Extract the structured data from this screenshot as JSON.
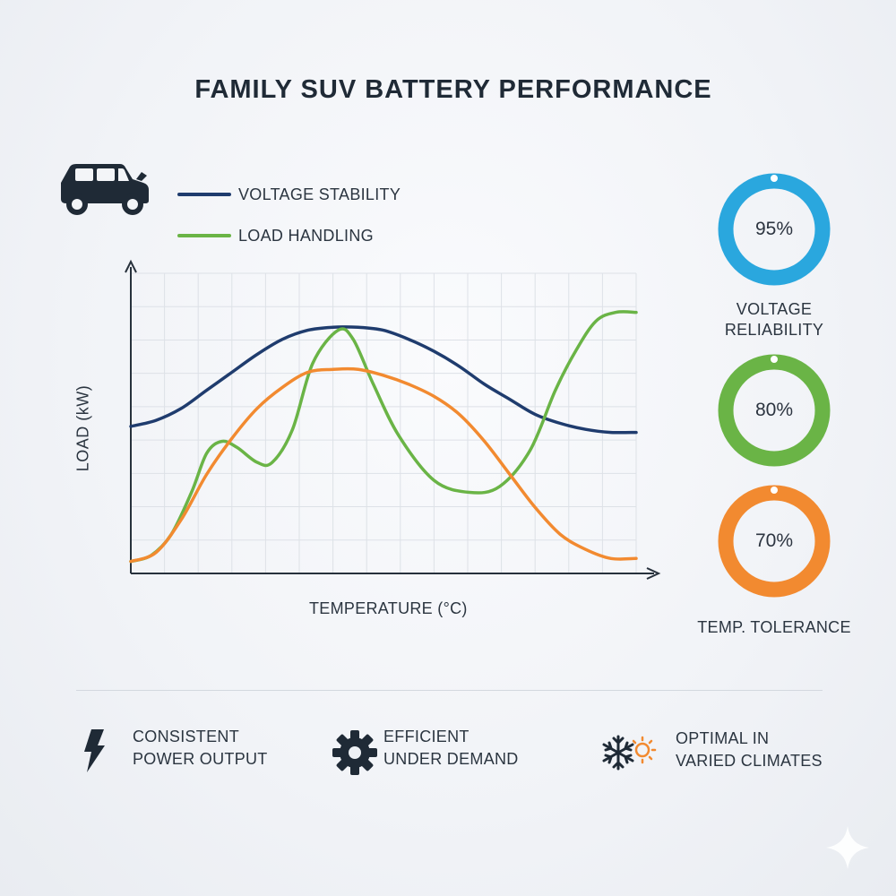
{
  "title": "FAMILY SUV BATTERY PERFORMANCE",
  "icons": {
    "car": "car-icon",
    "lightning": "lightning-icon",
    "gear": "gear-icon",
    "climate": "snowflake-sun-icon",
    "sparkle": "sparkle-icon"
  },
  "colors": {
    "voltage": "#1f3c6e",
    "load": "#6ab446",
    "temp": "#f28a30",
    "blue_gauge": "#2aa7de",
    "green_gauge": "#6ab446",
    "orange_gauge": "#f28a30"
  },
  "chart_data": {
    "type": "line",
    "title": "FAMILY SUV BATTERY PERFORMANCE",
    "xlabel": "TEMPERATURE (°C)",
    "ylabel": "LOAD (kW)",
    "grid": true,
    "legend_position": "top-left",
    "xlim": [
      0,
      100
    ],
    "ylim": [
      0,
      100
    ],
    "series": [
      {
        "name": "VOLTAGE STABILITY",
        "color": "#1f3c6e",
        "points": [
          [
            0,
            49
          ],
          [
            5,
            51
          ],
          [
            10,
            55
          ],
          [
            15,
            61
          ],
          [
            20,
            67
          ],
          [
            25,
            73
          ],
          [
            30,
            78
          ],
          [
            35,
            81
          ],
          [
            40,
            82
          ],
          [
            45,
            82
          ],
          [
            50,
            81
          ],
          [
            55,
            78
          ],
          [
            60,
            74
          ],
          [
            65,
            69
          ],
          [
            70,
            63
          ],
          [
            75,
            58
          ],
          [
            80,
            53
          ],
          [
            85,
            50
          ],
          [
            90,
            48
          ],
          [
            95,
            47
          ],
          [
            100,
            47
          ]
        ]
      },
      {
        "name": "LOAD HANDLING",
        "color": "#6ab446",
        "points": [
          [
            0,
            4
          ],
          [
            4,
            6
          ],
          [
            8,
            13
          ],
          [
            12,
            27
          ],
          [
            15,
            40
          ],
          [
            18,
            44
          ],
          [
            21,
            42
          ],
          [
            25,
            37
          ],
          [
            28,
            37
          ],
          [
            32,
            48
          ],
          [
            36,
            70
          ],
          [
            41,
            81
          ],
          [
            44,
            78
          ],
          [
            48,
            63
          ],
          [
            53,
            46
          ],
          [
            60,
            31
          ],
          [
            67,
            27
          ],
          [
            73,
            29
          ],
          [
            79,
            41
          ],
          [
            84,
            61
          ],
          [
            88,
            74
          ],
          [
            92,
            84
          ],
          [
            96,
            87
          ],
          [
            100,
            87
          ]
        ]
      },
      {
        "color": "#f28a30",
        "points": [
          [
            0,
            4
          ],
          [
            5,
            7
          ],
          [
            10,
            18
          ],
          [
            15,
            33
          ],
          [
            20,
            45
          ],
          [
            25,
            55
          ],
          [
            30,
            62
          ],
          [
            35,
            67
          ],
          [
            40,
            68
          ],
          [
            45,
            68
          ],
          [
            50,
            66
          ],
          [
            55,
            63
          ],
          [
            60,
            59
          ],
          [
            65,
            53
          ],
          [
            70,
            44
          ],
          [
            75,
            33
          ],
          [
            80,
            22
          ],
          [
            85,
            13
          ],
          [
            90,
            8
          ],
          [
            95,
            5
          ],
          [
            100,
            5
          ]
        ]
      }
    ]
  },
  "gauges": [
    {
      "value_text": "95%",
      "value": 95,
      "label": "VOLTAGE\nRELIABILITY",
      "color": "#2aa7de"
    },
    {
      "value_text": "80%",
      "value": 80,
      "label": "",
      "color": "#6ab446"
    },
    {
      "value_text": "70%",
      "value": 70,
      "label": "TEMP. TOLERANCE",
      "color": "#f28a30"
    }
  ],
  "features": [
    {
      "icon": "lightning-icon",
      "text": "CONSISTENT\nPOWER OUTPUT"
    },
    {
      "icon": "gear-icon",
      "text": "EFFICIENT\nUNDER DEMAND"
    },
    {
      "icon": "snowflake-sun-icon",
      "text": "OPTIMAL IN\nVARIED CLIMATES"
    }
  ]
}
